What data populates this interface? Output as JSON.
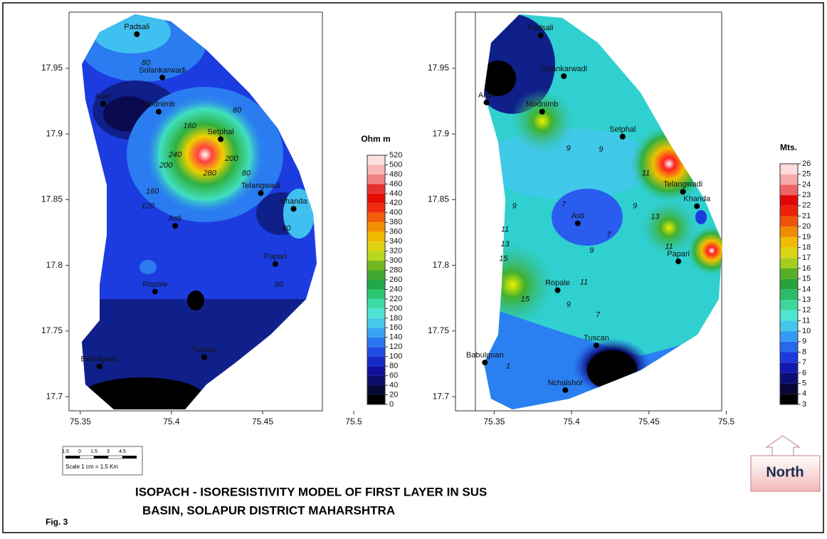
{
  "maps": [
    {
      "xlim": [
        75.3438,
        75.4828
      ],
      "ylim": [
        17.6892,
        17.9928
      ],
      "xticks": [
        75.35,
        75.4,
        75.45,
        75.5
      ],
      "yticks": [
        17.7,
        17.75,
        17.8,
        17.85,
        17.9,
        17.95
      ],
      "places": [
        {
          "name": "Padsali",
          "lon": 75.381,
          "lat": 17.976
        },
        {
          "name": "Solankarwadi",
          "lon": 75.395,
          "lat": 17.943
        },
        {
          "name": "Aran",
          "lon": 75.3625,
          "lat": 17.923
        },
        {
          "name": "Modnimb",
          "lon": 75.393,
          "lat": 17.917
        },
        {
          "name": "Setphal",
          "lon": 75.427,
          "lat": 17.896
        },
        {
          "name": "Telangwadi",
          "lon": 75.449,
          "lat": 17.855
        },
        {
          "name": "Khanda",
          "lon": 75.467,
          "lat": 17.843
        },
        {
          "name": "Asti",
          "lon": 75.402,
          "lat": 17.83
        },
        {
          "name": "Papari",
          "lon": 75.457,
          "lat": 17.801
        },
        {
          "name": "Ropale",
          "lon": 75.391,
          "lat": 17.78
        },
        {
          "name": "Babulgoan",
          "lon": 75.3605,
          "lat": 17.723
        },
        {
          "name": "Tuscan",
          "lon": 75.418,
          "lat": 17.73
        }
      ],
      "contour_labels": [
        {
          "value": 80,
          "lon": 75.386,
          "lat": 17.954
        },
        {
          "value": 160,
          "lon": 75.41,
          "lat": 17.906
        },
        {
          "value": 200,
          "lon": 75.397,
          "lat": 17.876
        },
        {
          "value": 240,
          "lon": 75.402,
          "lat": 17.884
        },
        {
          "value": 280,
          "lon": 75.421,
          "lat": 17.87
        },
        {
          "value": 200,
          "lon": 75.433,
          "lat": 17.881
        },
        {
          "value": 80,
          "lon": 75.436,
          "lat": 17.918
        },
        {
          "value": 80,
          "lon": 75.441,
          "lat": 17.87
        },
        {
          "value": 160,
          "lon": 75.3895,
          "lat": 17.856
        },
        {
          "value": 120,
          "lon": 75.387,
          "lat": 17.845
        },
        {
          "value": 80,
          "lon": 75.463,
          "lat": 17.828
        },
        {
          "value": 80,
          "lon": 75.459,
          "lat": 17.785
        }
      ],
      "colorbar": {
        "title": "Ohm m",
        "ticks": [
          0,
          20,
          40,
          60,
          80,
          100,
          120,
          140,
          160,
          180,
          200,
          220,
          240,
          260,
          280,
          300,
          320,
          340,
          360,
          380,
          400,
          420,
          440,
          460,
          480,
          500,
          520
        ]
      }
    },
    {
      "xlim": [
        75.325,
        75.497
      ],
      "ylim": [
        17.6892,
        17.9928
      ],
      "xticks": [
        75.35,
        75.4,
        75.45,
        75.5
      ],
      "yticks": [
        17.7,
        17.75,
        17.8,
        17.85,
        17.9,
        17.95
      ],
      "places": [
        {
          "name": "Padsali",
          "lon": 75.38,
          "lat": 17.975
        },
        {
          "name": "Solankarwadi",
          "lon": 75.395,
          "lat": 17.944
        },
        {
          "name": "Aran",
          "lon": 75.345,
          "lat": 17.924
        },
        {
          "name": "Modnimb",
          "lon": 75.381,
          "lat": 17.917
        },
        {
          "name": "Setphal",
          "lon": 75.433,
          "lat": 17.898
        },
        {
          "name": "Telangwadi",
          "lon": 75.472,
          "lat": 17.856
        },
        {
          "name": "Khanda",
          "lon": 75.481,
          "lat": 17.845
        },
        {
          "name": "Asti",
          "lon": 75.404,
          "lat": 17.832
        },
        {
          "name": "Papari",
          "lon": 75.469,
          "lat": 17.803
        },
        {
          "name": "Ropale",
          "lon": 75.391,
          "lat": 17.781
        },
        {
          "name": "Babulgoan",
          "lon": 75.344,
          "lat": 17.726
        },
        {
          "name": "Tuscan",
          "lon": 75.416,
          "lat": 17.739
        },
        {
          "name": "Nchalshor",
          "lon": 75.396,
          "lat": 17.705
        }
      ],
      "contour_labels": [
        {
          "value": 9,
          "lon": 75.398,
          "lat": 17.889
        },
        {
          "value": 9,
          "lon": 75.419,
          "lat": 17.888
        },
        {
          "value": 7,
          "lon": 75.395,
          "lat": 17.846
        },
        {
          "value": 9,
          "lon": 75.363,
          "lat": 17.845
        },
        {
          "value": 11,
          "lon": 75.357,
          "lat": 17.827
        },
        {
          "value": 13,
          "lon": 75.357,
          "lat": 17.816
        },
        {
          "value": 15,
          "lon": 75.356,
          "lat": 17.805
        },
        {
          "value": 9,
          "lon": 75.413,
          "lat": 17.811
        },
        {
          "value": 7,
          "lon": 75.424,
          "lat": 17.823
        },
        {
          "value": 11,
          "lon": 75.408,
          "lat": 17.787
        },
        {
          "value": 9,
          "lon": 75.398,
          "lat": 17.77
        },
        {
          "value": 7,
          "lon": 75.417,
          "lat": 17.762
        },
        {
          "value": 13,
          "lon": 75.454,
          "lat": 17.837
        },
        {
          "value": 11,
          "lon": 75.463,
          "lat": 17.814
        },
        {
          "value": 9,
          "lon": 75.441,
          "lat": 17.845
        },
        {
          "value": 11,
          "lon": 75.448,
          "lat": 17.87
        },
        {
          "value": 1,
          "lon": 75.359,
          "lat": 17.723
        },
        {
          "value": 15,
          "lon": 75.37,
          "lat": 17.774
        }
      ],
      "colorbar": {
        "title": "Mts.",
        "ticks": [
          3,
          4,
          5,
          6,
          7,
          8,
          9,
          10,
          11,
          12,
          13,
          14,
          15,
          16,
          17,
          18,
          19,
          20,
          21,
          22,
          23,
          24,
          25,
          26
        ]
      }
    }
  ],
  "scale_bar": {
    "ticks": [
      "1.5",
      "0",
      "1.5",
      "3",
      "4.5"
    ],
    "label": "Scale 1 cm = 1.5 Km"
  },
  "north": "North",
  "title": [
    "ISOPACH - ISORESISTIVITY MODEL OF FIRST LAYER IN SUS",
    "BASIN, SOLAPUR DISTRICT MAHARSHTRA"
  ],
  "figure_label": "Fig. 3"
}
